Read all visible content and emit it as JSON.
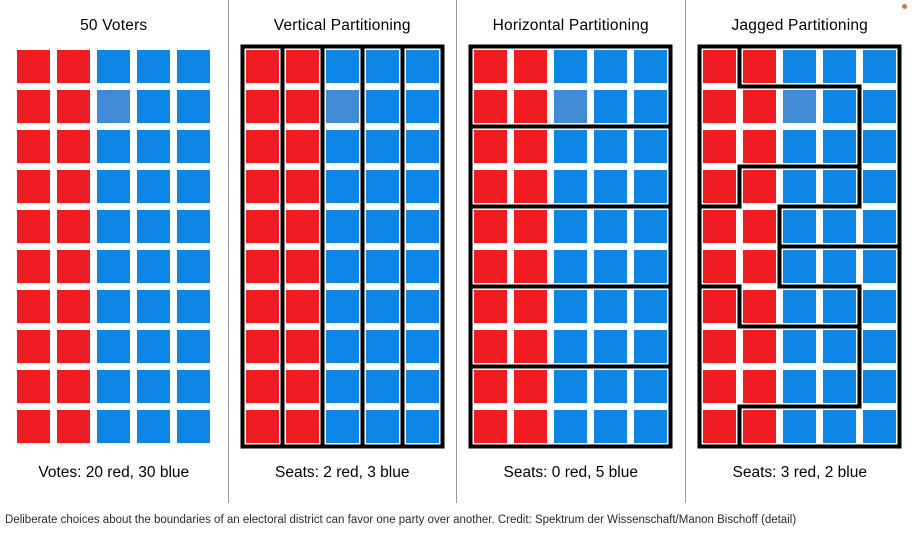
{
  "figure": {
    "colors": {
      "red": "#ee1c23",
      "blue": "#0e86e6",
      "light_blue": "#4289d6",
      "border": "#000000",
      "separator": "#9b9b9b",
      "dot": "#c77b40"
    },
    "grid": {
      "cols": 5,
      "rows": [
        "RRBBB",
        "RRLBB",
        "RRBBB",
        "RRBBB",
        "RRBBB",
        "RRBBB",
        "RRBBB",
        "RRBBB",
        "RRBBB",
        "RRBBB"
      ],
      "legend": {
        "R": "red voter",
        "B": "blue voter",
        "L": "blue voter (lighter shade)"
      }
    },
    "panels": [
      {
        "id": "fifty-voters",
        "title": "50 Voters",
        "label": "Votes: 20 red, 30 blue",
        "has_outer_border": false,
        "segments": []
      },
      {
        "id": "vertical-partitioning",
        "title": "Vertical Partitioning",
        "label": "Seats: 2 red, 3 blue",
        "has_outer_border": true,
        "segments": [
          [
            1,
            0,
            1,
            10
          ],
          [
            2,
            0,
            2,
            10
          ],
          [
            3,
            0,
            3,
            10
          ],
          [
            4,
            0,
            4,
            10
          ]
        ]
      },
      {
        "id": "horizontal-partitioning",
        "title": "Horizontal Partitioning",
        "label": "Seats: 0 red, 5 blue",
        "has_outer_border": true,
        "segments": [
          [
            0,
            2,
            5,
            2
          ],
          [
            0,
            4,
            5,
            4
          ],
          [
            0,
            6,
            5,
            6
          ],
          [
            0,
            8,
            5,
            8
          ]
        ]
      },
      {
        "id": "jagged-partitioning",
        "title": "Jagged Partitioning",
        "label": "Seats: 3 red, 2 blue",
        "has_outer_border": true,
        "segments": [
          [
            1,
            0,
            1,
            1
          ],
          [
            1,
            1,
            4,
            1
          ],
          [
            4,
            1,
            4,
            4
          ],
          [
            1,
            3,
            4,
            3
          ],
          [
            1,
            3,
            1,
            4
          ],
          [
            0,
            4,
            1,
            4
          ],
          [
            2,
            4,
            4,
            4
          ],
          [
            2,
            4,
            2,
            6
          ],
          [
            2,
            5,
            5,
            5
          ],
          [
            0,
            6,
            1,
            6
          ],
          [
            2,
            6,
            4,
            6
          ],
          [
            1,
            6,
            1,
            7
          ],
          [
            1,
            7,
            4,
            7
          ],
          [
            4,
            6,
            4,
            9
          ],
          [
            1,
            9,
            4,
            9
          ],
          [
            1,
            9,
            1,
            10
          ]
        ]
      }
    ],
    "caption": "Deliberate choices about the boundaries of an electoral district can favor one party over another. Credit: Spektrum der Wissenschaft/Manon Bischoff (detail)"
  }
}
